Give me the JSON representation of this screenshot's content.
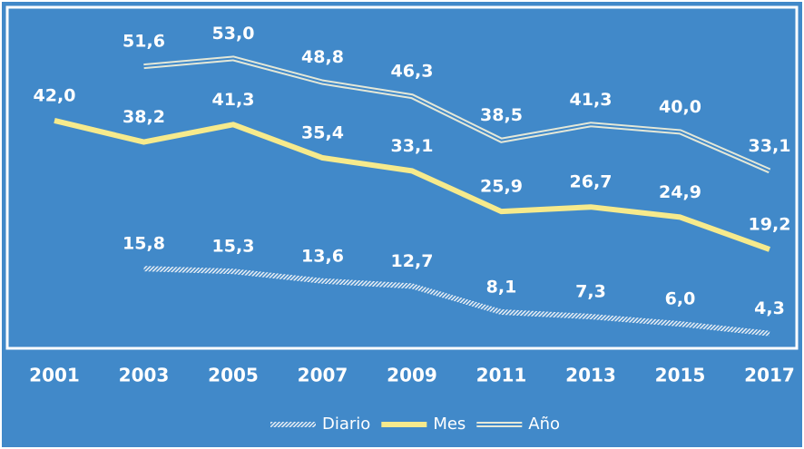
{
  "chart_data": {
    "type": "line",
    "categories": [
      "2001",
      "2003",
      "2005",
      "2007",
      "2009",
      "2011",
      "2013",
      "2015",
      "2017"
    ],
    "series": [
      {
        "name": "Diario",
        "color": "#dde6ee",
        "values": [
          null,
          15.8,
          15.3,
          13.6,
          12.7,
          8.1,
          7.3,
          6.0,
          4.3
        ],
        "value_labels": [
          null,
          "15,8",
          "15,3",
          "13,6",
          "12,7",
          "8,1",
          "7,3",
          "6,0",
          "4,3"
        ]
      },
      {
        "name": "Mes",
        "color": "#f6ea8c",
        "values": [
          42.0,
          38.2,
          41.3,
          35.4,
          33.1,
          25.9,
          26.7,
          24.9,
          19.2
        ],
        "value_labels": [
          "42,0",
          "38,2",
          "41,3",
          "35,4",
          "33,1",
          "25,9",
          "26,7",
          "24,9",
          "19,2"
        ]
      },
      {
        "name": "Año",
        "color": "#e4e8d8",
        "values": [
          null,
          51.6,
          53.0,
          48.8,
          46.3,
          38.5,
          41.3,
          40.0,
          33.1
        ],
        "value_labels": [
          null,
          "51,6",
          "53,0",
          "48,8",
          "46,3",
          "38,5",
          "41,3",
          "40,0",
          "33,1"
        ]
      }
    ],
    "ylim": [
      2,
      62
    ]
  }
}
